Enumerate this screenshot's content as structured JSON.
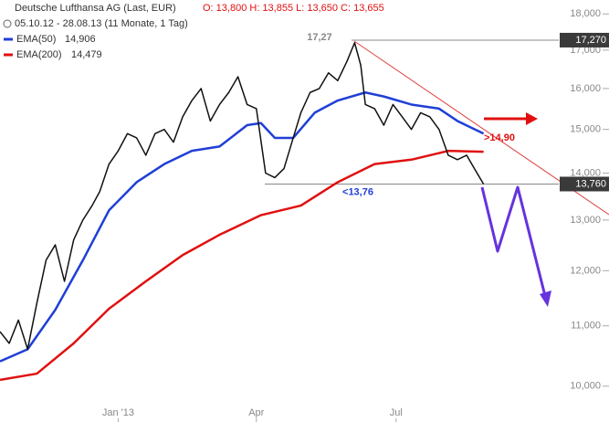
{
  "chart_data": {
    "type": "line",
    "title": "Deutsche Lufthansa AG (Last, EUR)",
    "quote": "O: 13,800  H: 13,855  L: 13,650  C: 13,655",
    "subtitle": "05.10.12 - 28.08.13 (11 Monate, 1 Tag)",
    "log_scale": true,
    "xlim": [
      15,
      379
    ],
    "xticks": [
      {
        "value": 92,
        "label": "Jan '13"
      },
      {
        "value": 182,
        "label": "Apr"
      },
      {
        "value": 273,
        "label": "Jul"
      }
    ],
    "ylim": [
      9.45,
      18.4
    ],
    "yticks": [
      {
        "value": 10,
        "label": "10,000"
      },
      {
        "value": 11,
        "label": "11,000"
      },
      {
        "value": 12,
        "label": "12,000"
      },
      {
        "value": 13,
        "label": "13,000"
      },
      {
        "value": 14,
        "label": "14,000"
      },
      {
        "value": 15,
        "label": "15,000"
      },
      {
        "value": 16,
        "label": "16,000"
      },
      {
        "value": 17,
        "label": "17,000"
      },
      {
        "value": 18,
        "label": "18,000"
      }
    ],
    "price": {
      "color": "#111111",
      "x": [
        15,
        21,
        27,
        33,
        39,
        45,
        51,
        57,
        63,
        69,
        75,
        80,
        86,
        92,
        98,
        104,
        110,
        116,
        122,
        128,
        134,
        140,
        146,
        152,
        158,
        164,
        170,
        176,
        182,
        188,
        194,
        200,
        206,
        211,
        217,
        223,
        229,
        235,
        241,
        246,
        250,
        253,
        259,
        265,
        271,
        277,
        283,
        289,
        295,
        301,
        307,
        313,
        319,
        324,
        330
      ],
      "values": [
        10.9,
        10.7,
        11.1,
        10.6,
        11.4,
        12.2,
        12.5,
        11.8,
        12.6,
        13.0,
        13.3,
        13.6,
        14.2,
        14.5,
        14.9,
        14.8,
        14.4,
        14.9,
        15.0,
        14.7,
        15.3,
        15.7,
        16.0,
        15.2,
        15.6,
        15.9,
        16.3,
        15.6,
        15.5,
        14.0,
        13.9,
        14.1,
        14.8,
        15.4,
        15.9,
        16.0,
        16.4,
        16.2,
        16.7,
        17.2,
        16.6,
        15.6,
        15.5,
        15.1,
        15.6,
        15.3,
        15.0,
        15.4,
        15.3,
        15.0,
        14.4,
        14.3,
        14.4,
        14.1,
        13.76
      ]
    },
    "series": [
      {
        "name": "EMA(50)",
        "last_label": "14,906",
        "color": "#1f3fd6",
        "x": [
          15,
          33,
          51,
          69,
          86,
          104,
          122,
          140,
          158,
          176,
          185,
          194,
          206,
          220,
          235,
          253,
          265,
          283,
          301,
          313,
          330
        ],
        "values": [
          10.4,
          10.6,
          11.28,
          12.2,
          13.2,
          13.8,
          14.2,
          14.5,
          14.6,
          15.1,
          15.15,
          14.8,
          14.8,
          15.4,
          15.7,
          15.9,
          15.8,
          15.6,
          15.5,
          15.2,
          14.9
        ]
      },
      {
        "name": "EMA(200)",
        "last_label": "14,479",
        "color": "#e01010",
        "x": [
          15,
          39,
          63,
          86,
          110,
          134,
          158,
          185,
          211,
          235,
          259,
          283,
          307,
          330
        ],
        "values": [
          10.1,
          10.2,
          10.7,
          11.3,
          11.8,
          12.3,
          12.7,
          13.1,
          13.3,
          13.8,
          14.2,
          14.3,
          14.5,
          14.48
        ]
      }
    ],
    "levels": [
      {
        "value": 17.27,
        "label": "17,27",
        "tag": "17,270"
      },
      {
        "value": 13.76,
        "label": "<13,76",
        "tag": "13,760"
      }
    ],
    "target": {
      "value": 14.9,
      "label": ">14,90"
    }
  }
}
